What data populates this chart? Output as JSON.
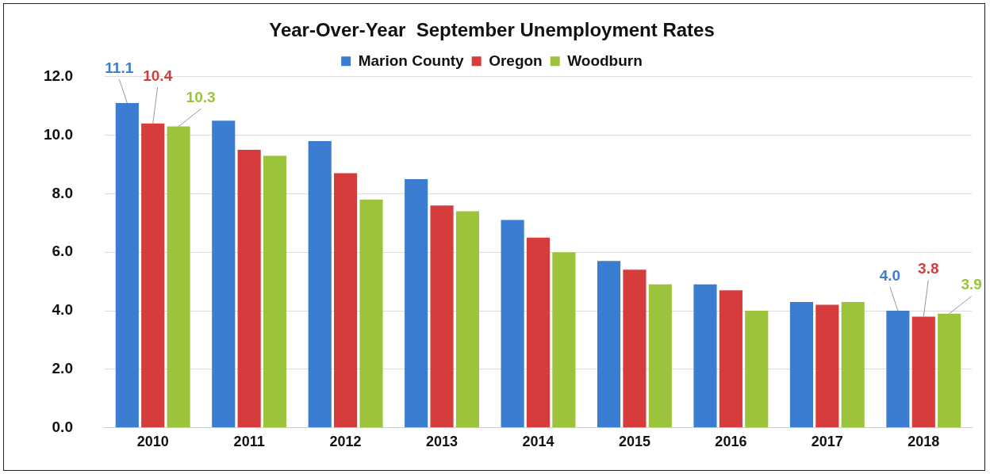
{
  "chart_data": {
    "type": "bar",
    "title": "Year-Over-Year  September Unemployment Rates",
    "categories": [
      "2010",
      "2011",
      "2012",
      "2013",
      "2014",
      "2015",
      "2016",
      "2017",
      "2018"
    ],
    "series": [
      {
        "name": "Marion County",
        "color": "#3b7dd0",
        "values": [
          11.1,
          10.5,
          9.8,
          8.5,
          7.1,
          5.7,
          4.9,
          4.3,
          4.0
        ],
        "value_labels": [
          "11.1",
          null,
          null,
          null,
          null,
          null,
          null,
          null,
          "4.0"
        ]
      },
      {
        "name": "Oregon",
        "color": "#d63c3c",
        "values": [
          10.4,
          9.5,
          8.7,
          7.6,
          6.5,
          5.4,
          4.7,
          4.2,
          3.8
        ],
        "value_labels": [
          "10.4",
          null,
          null,
          null,
          null,
          null,
          null,
          null,
          "3.8"
        ]
      },
      {
        "name": "Woodburn",
        "color": "#9bc43c",
        "values": [
          10.3,
          9.3,
          7.8,
          7.4,
          6.0,
          4.9,
          4.0,
          4.3,
          3.9
        ],
        "value_labels": [
          "10.3",
          null,
          null,
          null,
          null,
          null,
          null,
          null,
          "3.9"
        ]
      }
    ],
    "ylim": [
      0,
      12
    ],
    "yticks": [
      {
        "value": 0,
        "label": "0.0"
      },
      {
        "value": 2,
        "label": "2.0"
      },
      {
        "value": 4,
        "label": "4.0"
      },
      {
        "value": 6,
        "label": "6.0"
      },
      {
        "value": 8,
        "label": "8.0"
      },
      {
        "value": 10,
        "label": "10.0"
      },
      {
        "value": 12,
        "label": "12.0"
      }
    ],
    "grid": "y",
    "legend": "top"
  }
}
